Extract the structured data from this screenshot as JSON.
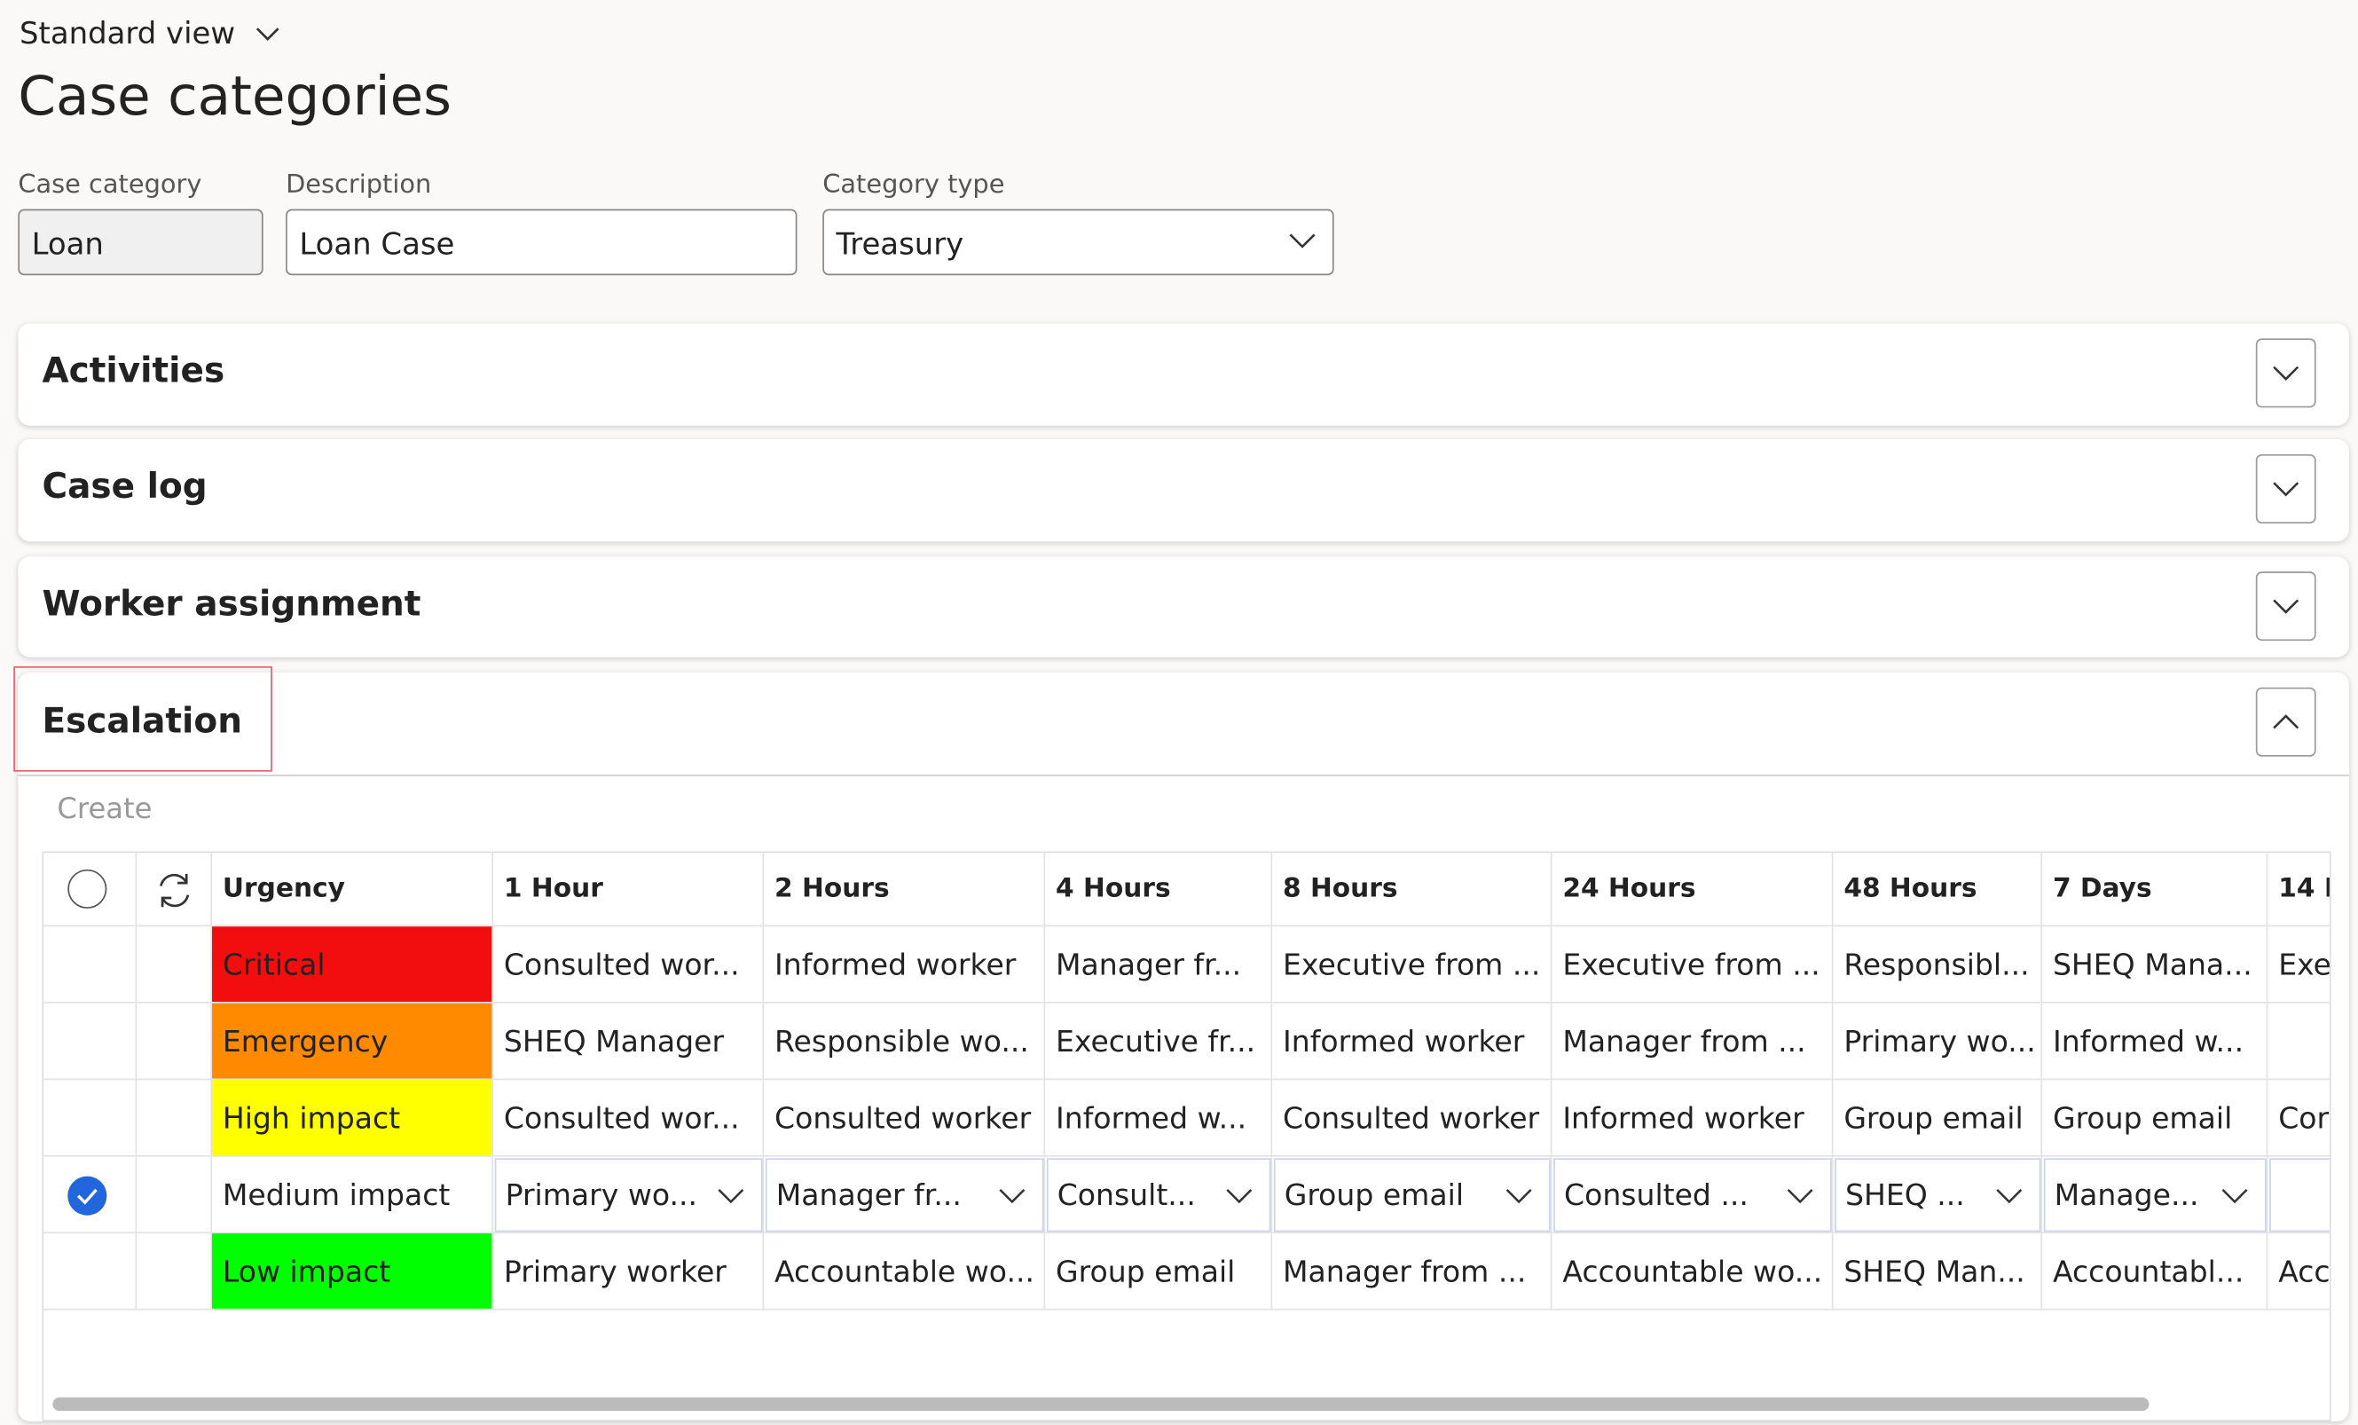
{
  "header": {
    "view_selector": "Standard view",
    "title": "Case categories"
  },
  "fields": [
    {
      "label": "Case category",
      "value": "Loan"
    },
    {
      "label": "Description",
      "value": "Loan Case"
    },
    {
      "label": "Category type",
      "value": "Treasury"
    }
  ],
  "sections": [
    "Activities",
    "Case log",
    "Worker assignment",
    "Escalation"
  ],
  "escalation": {
    "create": "Create",
    "columns": [
      "Urgency",
      "1 Hour",
      "2 Hours",
      "4 Hours",
      "8 Hours",
      "24 Hours",
      "48 Hours",
      "7 Days",
      "14 I"
    ],
    "rows": [
      {
        "urgency": "Critical",
        "color": "#f20e0e",
        "cells": [
          "Consulted wor...",
          "Informed worker",
          "Manager fr...",
          "Executive from ...",
          "Executive from ...",
          "Responsibl...",
          "SHEQ Mana...",
          "Exe"
        ]
      },
      {
        "urgency": "Emergency",
        "color": "#ff8a00",
        "cells": [
          "SHEQ Manager",
          "Responsible wo...",
          "Executive fr...",
          "Informed worker",
          "Manager from ...",
          "Primary wo...",
          "Informed w...",
          null
        ]
      },
      {
        "urgency": "High impact",
        "color": "#ffff00",
        "cells": [
          "Consulted wor...",
          "Consulted worker",
          "Informed w...",
          "Consulted worker",
          "Informed worker",
          "Group email",
          "Group email",
          "Cor"
        ]
      },
      {
        "urgency": "Medium impact",
        "selected": true,
        "cells": [
          "Primary wo...",
          "Manager fr...",
          "Consult...",
          "Group email",
          "Consulted ...",
          "SHEQ ...",
          "Manage...",
          null
        ]
      },
      {
        "urgency": "Low impact",
        "color": "#00ff00",
        "cells": [
          "Primary worker",
          "Accountable wo...",
          "Group email",
          "Manager from ...",
          "Accountable wo...",
          "SHEQ Man...",
          "Accountabl...",
          "Acc"
        ]
      }
    ]
  }
}
